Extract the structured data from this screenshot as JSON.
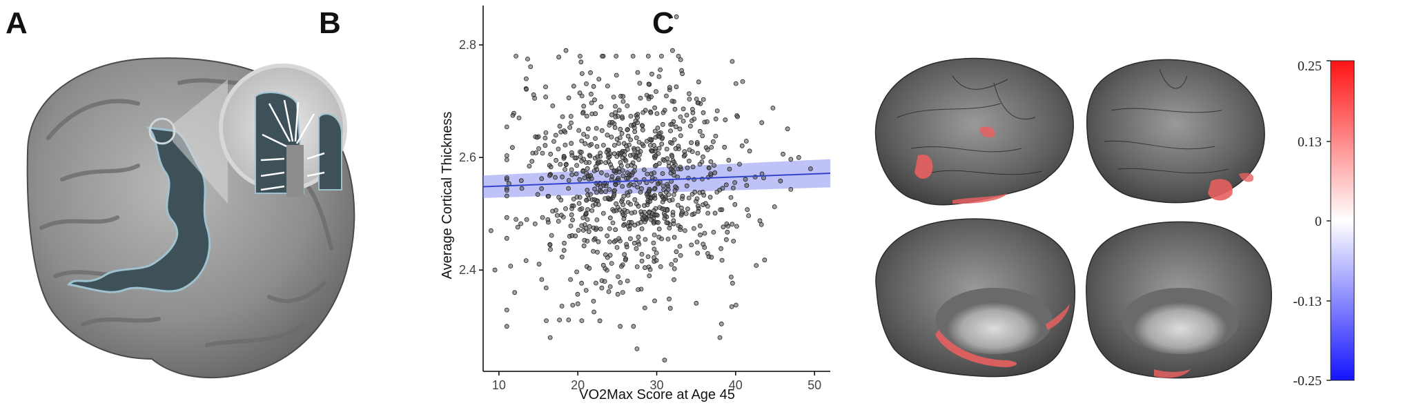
{
  "panels": {
    "a": "A",
    "b": "B",
    "c": "C"
  },
  "chart_data": [
    {
      "type": "scatter",
      "xlabel": "VO2Max Score at Age 45",
      "ylabel": "Average Cortical Thickness",
      "xlim": [
        8,
        52
      ],
      "ylim": [
        2.22,
        2.87
      ],
      "xticks": [
        10,
        20,
        30,
        40,
        50
      ],
      "yticks": [
        2.4,
        2.6,
        2.8
      ],
      "ytick_labels": [
        "2.4",
        "2.6",
        "2.8"
      ],
      "grid": false,
      "point_color": "#555555",
      "fit_line": {
        "x": [
          8,
          52
        ],
        "y": [
          2.548,
          2.572
        ],
        "color": "#3344cc",
        "ci_upper": [
          2.568,
          2.597
        ],
        "ci_lower": [
          2.528,
          2.547
        ],
        "ci_color": "#8a8ff0"
      },
      "points": {
        "description_count": 880,
        "x_mean": 27,
        "x_sd": 7.2,
        "y_mean": 2.56,
        "y_sd": 0.095,
        "outliers": [
          [
            32.5,
            2.85
          ],
          [
            18.5,
            2.79
          ],
          [
            27,
            2.78
          ],
          [
            32,
            2.79
          ],
          [
            9,
            2.47
          ],
          [
            9.5,
            2.4
          ],
          [
            16,
            2.31
          ],
          [
            16.5,
            2.28
          ],
          [
            20,
            2.34
          ],
          [
            20.5,
            2.31
          ],
          [
            27.5,
            2.26
          ],
          [
            31,
            2.24
          ],
          [
            38,
            2.28
          ],
          [
            12,
            2.36
          ],
          [
            48,
            2.6
          ],
          [
            49.5,
            2.58
          ]
        ]
      }
    },
    {
      "type": "heatmap",
      "colorbar": {
        "ticks": [
          "0.25",
          "0.13",
          "0",
          "-0.13",
          "-0.25"
        ],
        "colors": [
          "#ff1f1f",
          "#ffffff",
          "#1f1fff"
        ]
      }
    }
  ]
}
